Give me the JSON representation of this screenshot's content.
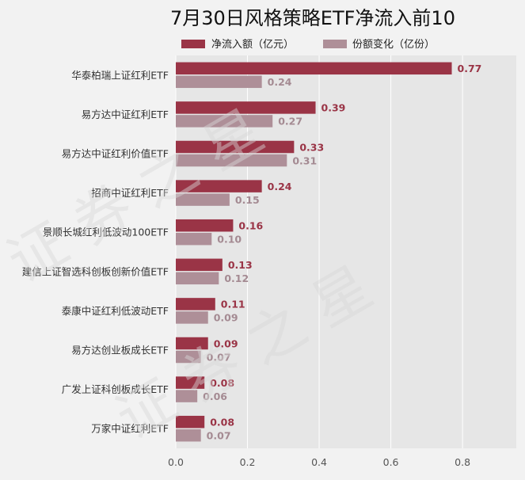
{
  "colors": {
    "net_inflow": "#9a3446",
    "share_change": "#ae8f98",
    "plot_bg": "#e6e6e6",
    "grid": "#ffffff"
  },
  "chart_data": {
    "type": "bar",
    "orientation": "horizontal",
    "title": "7月30日风格策略ETF净流入前10",
    "categories": [
      "华泰柏瑞上证红利ETF",
      "易方达中证红利ETF",
      "易方达中证红利价值ETF",
      "招商中证红利ETF",
      "景顺长城红利低波动100ETF",
      "建信上证智选科创板创新价值ETF",
      "泰康中证红利低波动ETF",
      "易方达创业板成长ETF",
      "广发上证科创板成长ETF",
      "万家中证红利ETF"
    ],
    "series": [
      {
        "name": "净流入额（亿元）",
        "values": [
          0.77,
          0.39,
          0.33,
          0.24,
          0.16,
          0.13,
          0.11,
          0.09,
          0.08,
          0.08
        ]
      },
      {
        "name": "份额变化（亿份）",
        "values": [
          0.24,
          0.27,
          0.31,
          0.15,
          0.1,
          0.12,
          0.09,
          0.07,
          0.06,
          0.07
        ]
      }
    ],
    "xlim": [
      0,
      0.95
    ],
    "xticks": [
      "0.0",
      "0.2",
      "0.4",
      "0.6",
      "0.8"
    ],
    "xtick_values": [
      0,
      0.2,
      0.4,
      0.6,
      0.8
    ],
    "xlabel": "",
    "ylabel": "",
    "grid": true,
    "legend_position": "top"
  }
}
